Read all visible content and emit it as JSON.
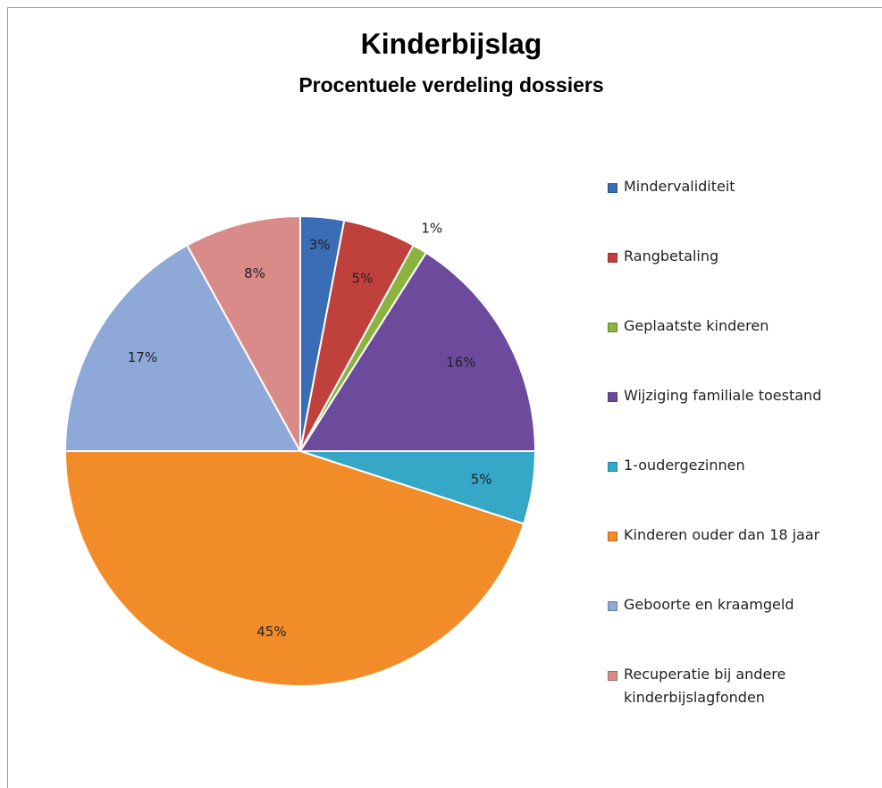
{
  "chart_data": {
    "type": "pie",
    "title": "Kinderbijslag",
    "subtitle": "Procentuele verdeling dossiers",
    "categories": [
      "Mindervaliditeit",
      "Rangbetaling",
      "Geplaatste kinderen",
      "Wijziging familiale toestand",
      "1-oudergezinnen",
      "Kinderen ouder dan 18 jaar",
      "Geboorte en kraamgeld",
      "Recuperatie bij andere kinderbijslagfonden"
    ],
    "values": [
      3,
      5,
      1,
      16,
      5,
      45,
      17,
      8
    ],
    "value_labels": [
      "3%",
      "5%",
      "1%",
      "16%",
      "5%",
      "45%",
      "17%",
      "8%"
    ],
    "colors": [
      "#3a6db5",
      "#c0403c",
      "#8ab43e",
      "#6c4a9c",
      "#35a8c8",
      "#f28c28",
      "#8ea8d8",
      "#d98b8a"
    ],
    "legend": "right"
  }
}
